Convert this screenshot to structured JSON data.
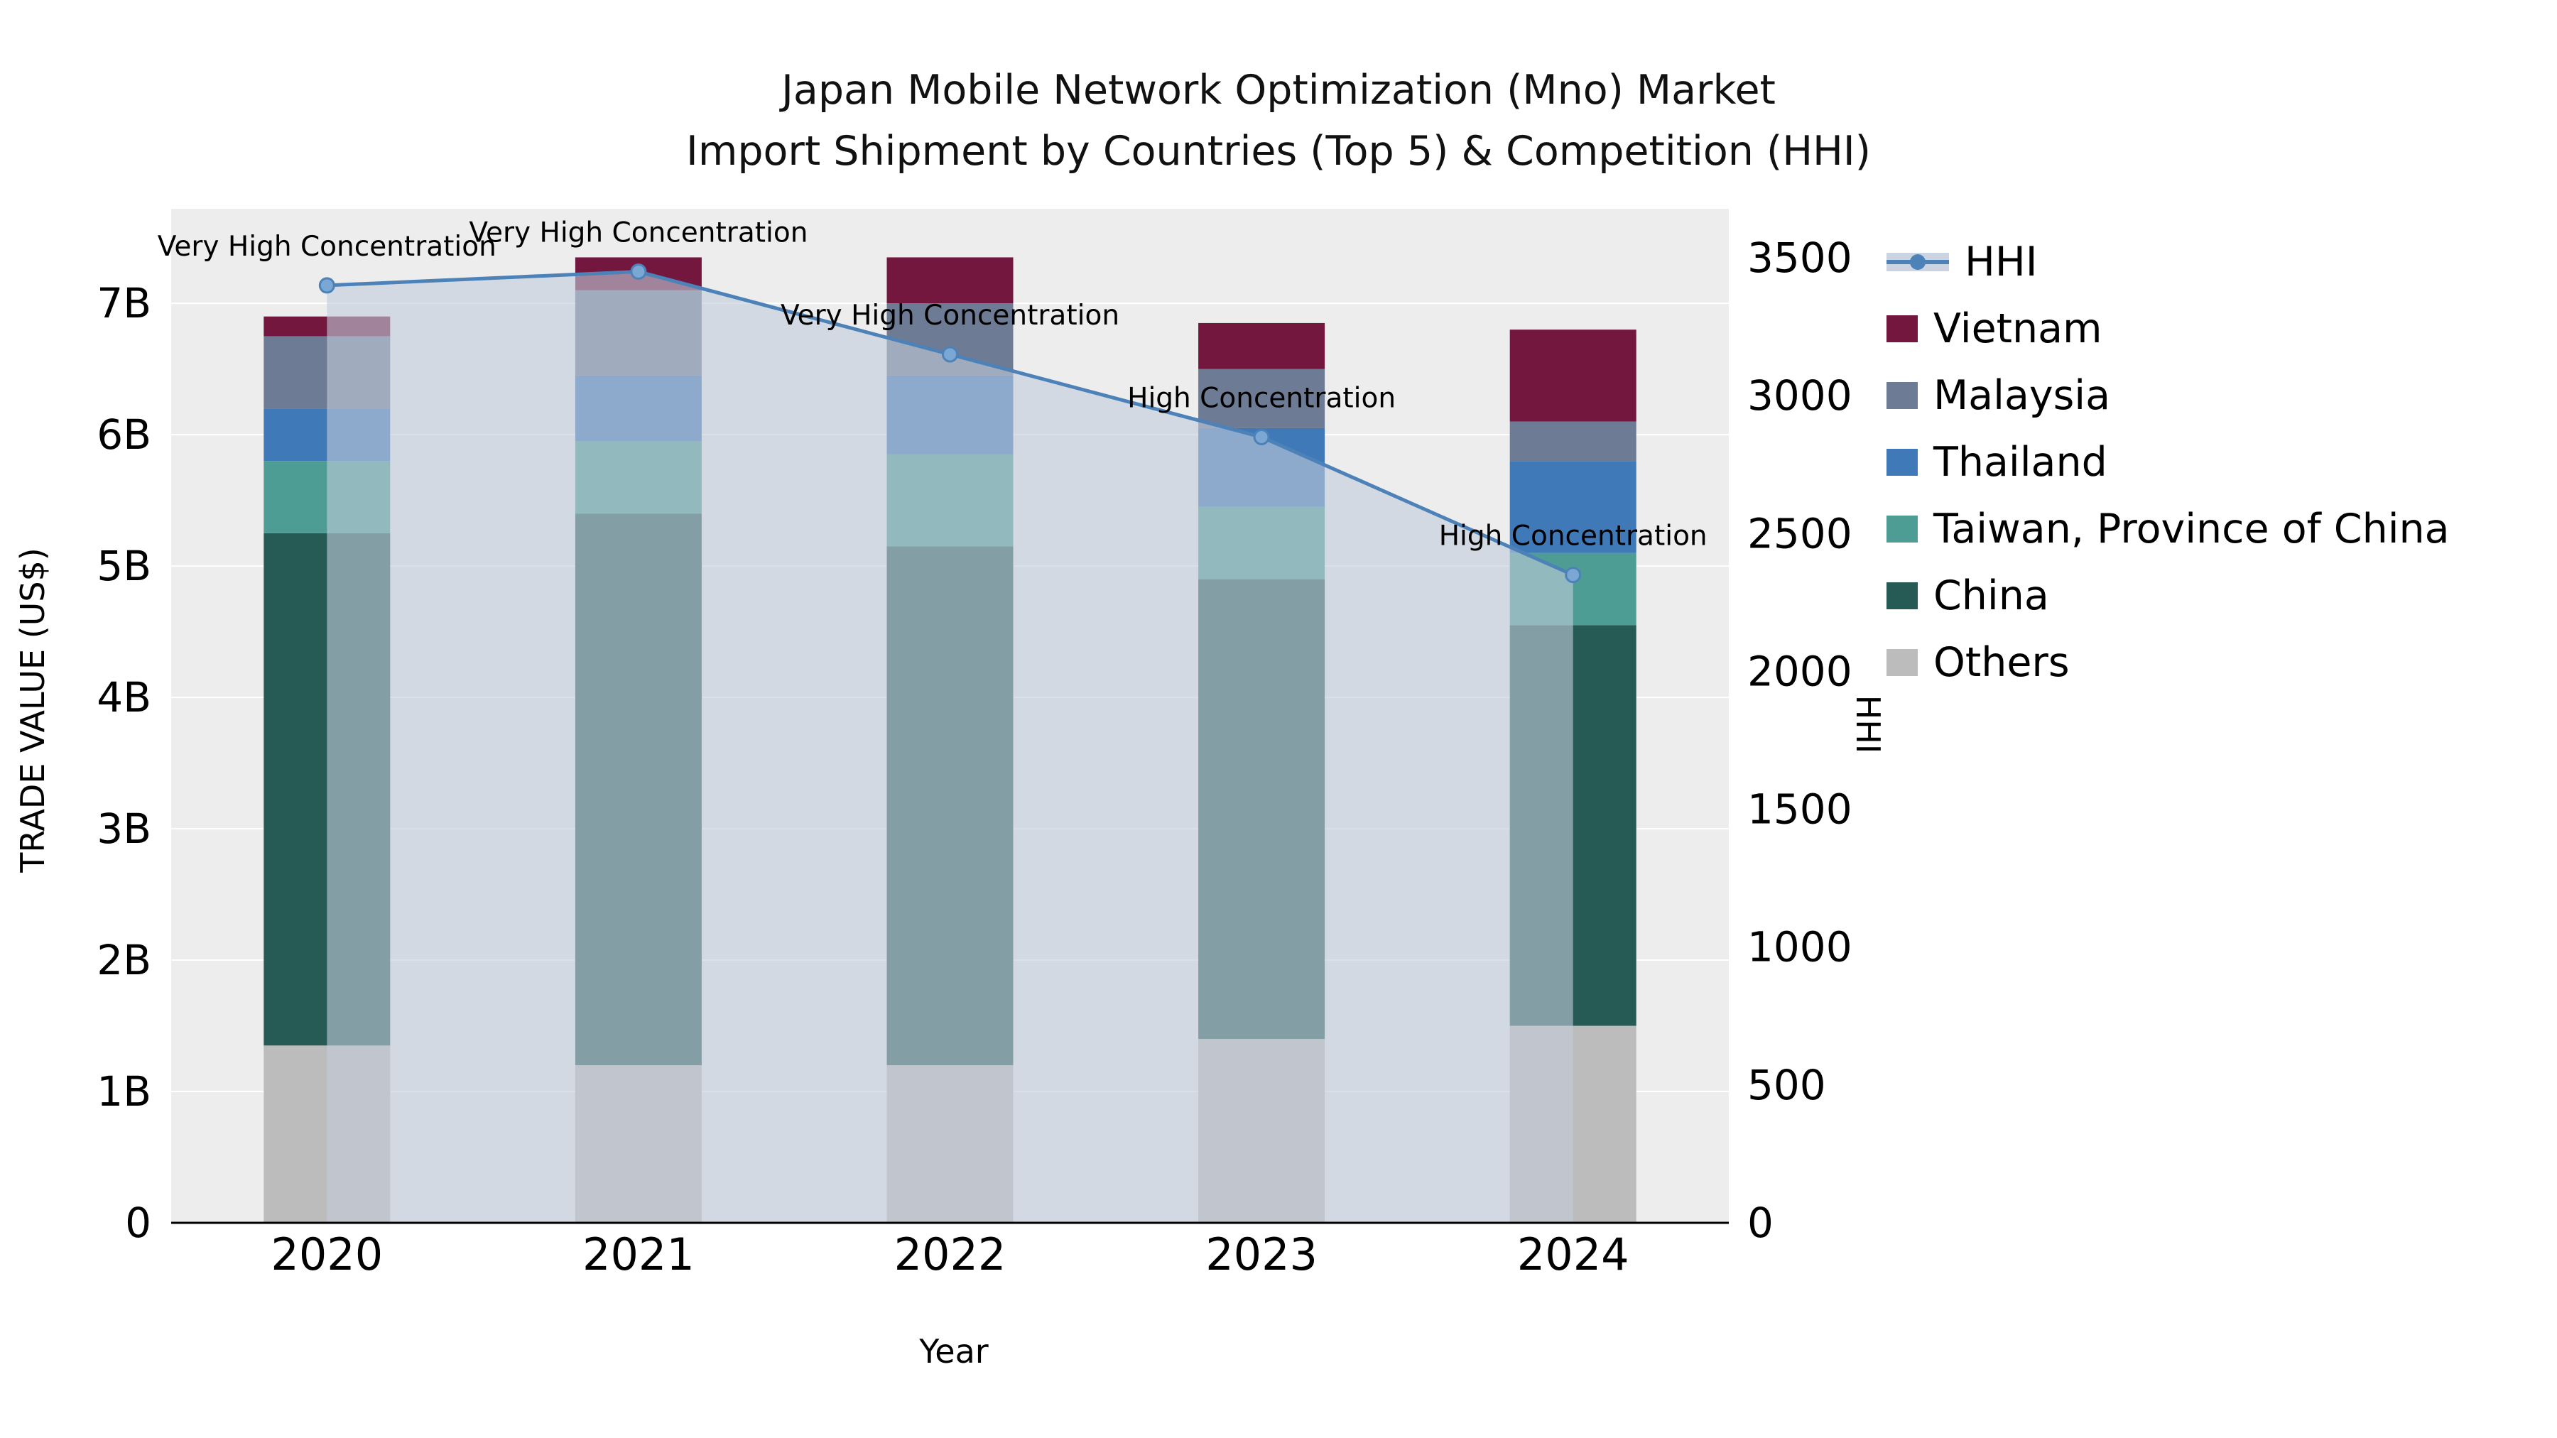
{
  "title": {
    "line1": "Japan Mobile Network Optimization (Mno) Market",
    "line2": "Import Shipment by Countries (Top 5) & Competition (HHI)"
  },
  "chart_data": {
    "type": "bar",
    "subtype": "stacked-bar-with-line",
    "categories": [
      "2020",
      "2021",
      "2022",
      "2023",
      "2024"
    ],
    "stack_order": "bottom-to-top",
    "series": [
      {
        "name": "Others",
        "color": "#bdbcbc",
        "values": [
          1.35,
          1.2,
          1.2,
          1.4,
          1.5
        ]
      },
      {
        "name": "China",
        "color": "#265a54",
        "values": [
          3.9,
          4.2,
          3.95,
          3.5,
          3.05
        ]
      },
      {
        "name": "Taiwan, Province of China",
        "color": "#4d9d95",
        "values": [
          0.55,
          0.55,
          0.7,
          0.55,
          0.55
        ]
      },
      {
        "name": "Thailand",
        "color": "#4079b8",
        "values": [
          0.4,
          0.5,
          0.6,
          0.6,
          0.7
        ]
      },
      {
        "name": "Malaysia",
        "color": "#6e7b94",
        "values": [
          0.55,
          0.65,
          0.55,
          0.45,
          0.3
        ]
      },
      {
        "name": "Vietnam",
        "color": "#73173f",
        "values": [
          0.15,
          0.25,
          0.35,
          0.35,
          0.7
        ]
      }
    ],
    "line": {
      "name": "HHI",
      "color": "#4d82b8",
      "marker_color": "#7aa7d4",
      "fill_color": "rgba(194,204,219,0.6)",
      "values": [
        3400,
        3450,
        3150,
        2850,
        2350
      ]
    },
    "annotations": [
      "Very High Concentration",
      "Very High Concentration",
      "Very High Concentration",
      "High Concentration",
      "High Concentration"
    ],
    "axes": {
      "left": {
        "title": "TRADE VALUE (US$)",
        "ticks": [
          0,
          1,
          2,
          3,
          4,
          5,
          6,
          7
        ],
        "tick_labels": [
          "0",
          "1B",
          "2B",
          "3B",
          "4B",
          "5B",
          "6B",
          "7B"
        ],
        "max": 7.72,
        "units": "US$ billions"
      },
      "right": {
        "title": "HHI",
        "ticks": [
          0,
          500,
          1000,
          1500,
          2000,
          2500,
          3000,
          3500
        ],
        "max": 3678
      },
      "x": {
        "title": "Year"
      }
    },
    "legend": [
      "HHI",
      "Vietnam",
      "Malaysia",
      "Thailand",
      "Taiwan, Province of China",
      "China",
      "Others"
    ],
    "plot_background": "#ededed",
    "grid": "on"
  }
}
